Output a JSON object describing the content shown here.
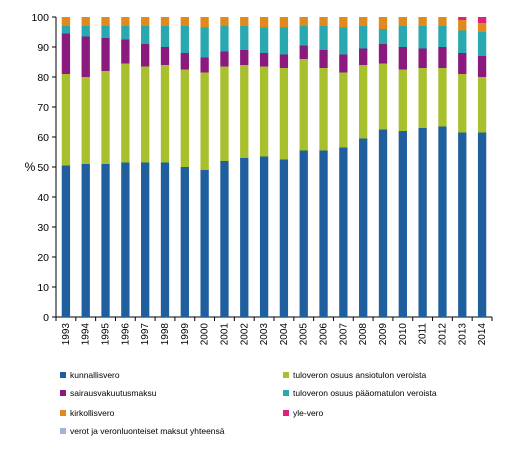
{
  "chart_data": {
    "type": "bar",
    "stacked": true,
    "ylabel": "%",
    "ylim": [
      0,
      100
    ],
    "yticks": [
      0,
      10,
      20,
      30,
      40,
      50,
      60,
      70,
      80,
      90,
      100
    ],
    "grid": false,
    "legend_position": "bottom",
    "categories": [
      "1993",
      "1994",
      "1995",
      "1996",
      "1997",
      "1998",
      "1999",
      "2000",
      "2001",
      "2002",
      "2003",
      "2004",
      "2005",
      "2006",
      "2007",
      "2008",
      "2009",
      "2010",
      "2011",
      "2012",
      "2013",
      "2014"
    ],
    "series": [
      {
        "name": "kunnallisvero",
        "color": "#1f5f9e",
        "values": [
          50.5,
          51,
          51,
          51.5,
          51.5,
          51.5,
          50,
          49,
          52,
          53,
          53.5,
          52.5,
          55.5,
          55.5,
          56.5,
          59.5,
          62.5,
          62,
          63,
          63.5,
          61.5,
          61.5
        ]
      },
      {
        "name": "tuloveron osuus ansiotulon veroista",
        "color": "#a8c02e",
        "values": [
          30.5,
          29,
          31,
          33,
          32,
          32.5,
          32.5,
          32.5,
          31.5,
          31,
          30,
          30.5,
          30.5,
          27.5,
          25,
          24.5,
          22,
          20.5,
          20,
          19.5,
          19.5,
          18.5
        ]
      },
      {
        "name": "sairausvakuutusmaksu",
        "color": "#8a1a7e",
        "values": [
          13.5,
          13.5,
          11,
          8,
          7.5,
          6,
          5.5,
          5,
          5,
          5,
          4.5,
          4.5,
          4.5,
          6,
          6,
          5.5,
          6.5,
          7.5,
          6.5,
          7,
          7,
          7
        ]
      },
      {
        "name": "tuloveron osuus pääomatulon veroista",
        "color": "#2aa8b0",
        "values": [
          2.5,
          3.5,
          4,
          4.5,
          6,
          7,
          9,
          10,
          8.5,
          8,
          8.5,
          9,
          6.5,
          8,
          9,
          7.5,
          5,
          7,
          7.5,
          7,
          7.5,
          8
        ]
      },
      {
        "name": "kirkollisvero",
        "color": "#e08a1e",
        "values": [
          3,
          3,
          3,
          3,
          3,
          3,
          3,
          3.5,
          3,
          3,
          3.5,
          3.5,
          3,
          3,
          3.5,
          3,
          4,
          3,
          3,
          3,
          3.5,
          3
        ]
      },
      {
        "name": "yle-vero",
        "color": "#e0207a",
        "values": [
          0,
          0,
          0,
          0,
          0,
          0,
          0,
          0,
          0,
          0,
          0,
          0,
          0,
          0,
          0,
          0,
          0,
          0,
          0,
          0,
          1,
          2
        ]
      },
      {
        "name": "verot ja veronluonteiset maksut yhteensä",
        "color": "#9fb6d6",
        "values": [
          0,
          0,
          0,
          0,
          0,
          0,
          0,
          0,
          0,
          0,
          0,
          0,
          0,
          0,
          0,
          0,
          0,
          0,
          0,
          0,
          0,
          0
        ]
      }
    ]
  }
}
